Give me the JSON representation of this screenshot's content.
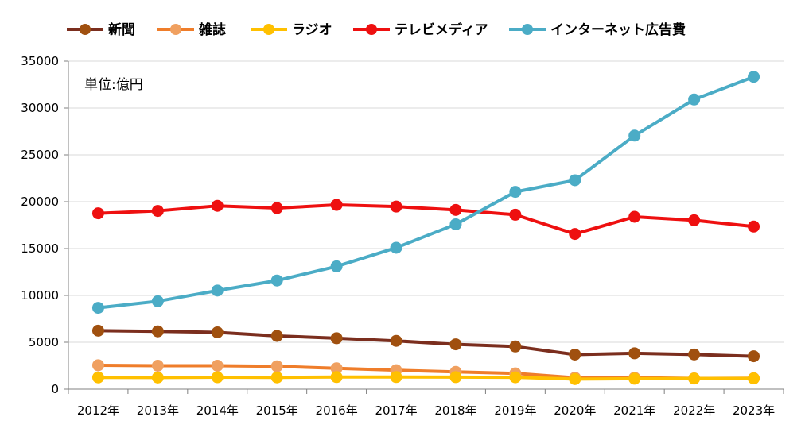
{
  "chart_data": {
    "type": "line",
    "unit_note": "単位:億円",
    "categories": [
      "2012年",
      "2013年",
      "2014年",
      "2015年",
      "2016年",
      "2017年",
      "2018年",
      "2019年",
      "2020年",
      "2021年",
      "2022年",
      "2023年"
    ],
    "ylim": [
      0,
      35000
    ],
    "yticks": [
      0,
      5000,
      10000,
      15000,
      20000,
      25000,
      30000,
      35000
    ],
    "grid": true,
    "legend_position": "top",
    "series": [
      {
        "name": "新聞",
        "color": "#7b2e1e",
        "marker": "#a0500f",
        "values": [
          6240,
          6170,
          6060,
          5680,
          5430,
          5150,
          4780,
          4550,
          3690,
          3820,
          3700,
          3510
        ]
      },
      {
        "name": "雑誌",
        "color": "#ef7d2a",
        "marker": "#f0a060",
        "values": [
          2550,
          2500,
          2500,
          2440,
          2220,
          2020,
          1840,
          1680,
          1220,
          1220,
          1140,
          1160
        ]
      },
      {
        "name": "ラジオ",
        "color": "#ffc000",
        "marker": "#ffc000",
        "values": [
          1250,
          1240,
          1270,
          1250,
          1290,
          1290,
          1280,
          1260,
          1070,
          1110,
          1130,
          1140
        ]
      },
      {
        "name": "テレビメディア",
        "color": "#ee1010",
        "marker": "#ee1010",
        "values": [
          18760,
          19020,
          19560,
          19320,
          19660,
          19480,
          19120,
          18610,
          16560,
          18390,
          18020,
          17350
        ]
      },
      {
        "name": "インターネット広告費",
        "color": "#4bacc6",
        "marker": "#4bacc6",
        "values": [
          8680,
          9380,
          10520,
          11590,
          13100,
          15090,
          17590,
          21050,
          22290,
          27050,
          30910,
          33330
        ]
      }
    ]
  }
}
